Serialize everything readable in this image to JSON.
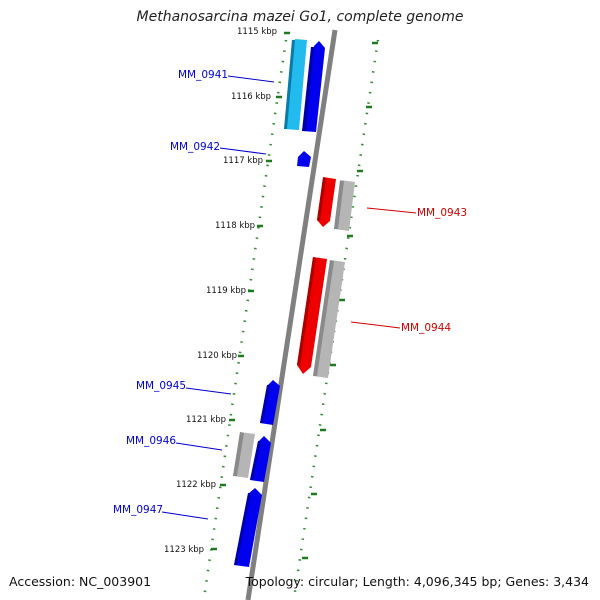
{
  "title": "Methanosarcina mazei Go1, complete genome",
  "accession_text": "Accession: NC_003901",
  "summary_text": "Topology: circular; Length: 4,096,345 bp; Genes: 3,434",
  "colors": {
    "backbone": "#808080",
    "guide_dots": "#2e8b2e",
    "forward_gene": "#0000ee",
    "reverse_gene": "#ee0000",
    "reverse_label": "#cc0000",
    "forward_light": "#22bbee",
    "gray_feature": "#a9a9a9"
  },
  "ticks": [
    {
      "label": "1115 kbp"
    },
    {
      "label": "1116 kbp"
    },
    {
      "label": "1117 kbp"
    },
    {
      "label": "1118 kbp"
    },
    {
      "label": "1119 kbp"
    },
    {
      "label": "1120 kbp"
    },
    {
      "label": "1121 kbp"
    },
    {
      "label": "1122 kbp"
    },
    {
      "label": "1123 kbp"
    }
  ],
  "genes": [
    {
      "name": "MM_0941",
      "strand": "forward"
    },
    {
      "name": "MM_0942",
      "strand": "forward"
    },
    {
      "name": "MM_0943",
      "strand": "reverse"
    },
    {
      "name": "MM_0944",
      "strand": "reverse"
    },
    {
      "name": "MM_0945",
      "strand": "forward"
    },
    {
      "name": "MM_0946",
      "strand": "forward"
    },
    {
      "name": "MM_0947",
      "strand": "forward"
    }
  ]
}
